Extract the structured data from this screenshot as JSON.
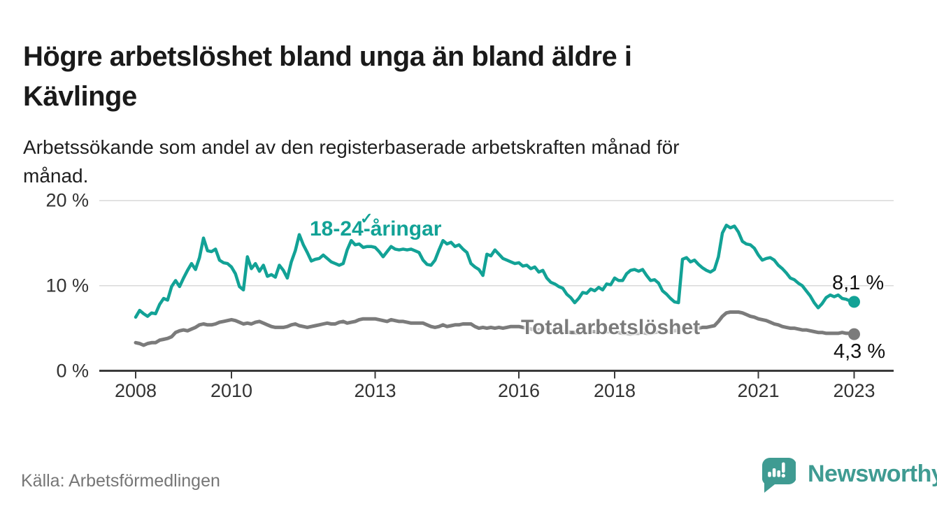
{
  "header": {
    "title": "Högre arbetslöshet bland unga än bland äldre i Kävlinge",
    "title_lines": [
      "Högre arbetslöshet bland unga än bland äldre i",
      "Kävlinge"
    ],
    "subtitle": "Arbetssökande som andel av den registerbaserade arbetskraften månad för månad.",
    "subtitle_lines": [
      "Arbetssökande som andel av den registerbaserade arbetskraften månad för",
      "månad."
    ]
  },
  "footer": {
    "source": "Källa: Arbetsförmedlingen",
    "logo_text": "Newsworthy",
    "logo_icon": "speech-bubble-bar-chart-icon"
  },
  "colors": {
    "young_line": "#12a296",
    "total_line": "#7b7b7b",
    "grid": "#d9d9d9",
    "axis": "#3a3a3a",
    "tick_text": "#333333",
    "logo_teal": "#3f9b92",
    "value_label_text": "#111111"
  },
  "chart_data": {
    "type": "line",
    "title": "Högre arbetslöshet bland unga än bland äldre i Kävlinge",
    "subtitle": "Arbetssökande som andel av den registerbaserade arbetskraften månad för månad.",
    "x_unit": "month",
    "x_start_year": 2008,
    "x_end": "2023-01",
    "xlim": [
      2008,
      2023.08
    ],
    "ylim": [
      0,
      21
    ],
    "grid": "horizontal",
    "legend": "inline-labels",
    "x_ticks": [
      {
        "year": 2008,
        "label": "2008"
      },
      {
        "year": 2010,
        "label": "2010"
      },
      {
        "year": 2013,
        "label": "2013"
      },
      {
        "year": 2016,
        "label": "2016"
      },
      {
        "year": 2018,
        "label": "2018"
      },
      {
        "year": 2021,
        "label": "2021"
      },
      {
        "year": 2023,
        "label": "2023"
      }
    ],
    "y_ticks": [
      {
        "value": 0,
        "label": "0 %"
      },
      {
        "value": 10,
        "label": "10 %"
      },
      {
        "value": 20,
        "label": "20 %"
      }
    ],
    "annotations": [
      {
        "id": "stray-check",
        "text": "✓"
      }
    ],
    "series": [
      {
        "name": "18-24-åringar",
        "color": "#12a296",
        "end_label": "8,1 %",
        "end_value": 8.1,
        "values": [
          6.3,
          7.1,
          6.7,
          6.4,
          6.8,
          6.7,
          7.8,
          8.5,
          8.3,
          9.9,
          10.6,
          9.9,
          10.9,
          11.8,
          12.6,
          11.9,
          13.3,
          15.6,
          14.1,
          14.0,
          14.3,
          13.0,
          12.7,
          12.6,
          12.2,
          11.4,
          9.9,
          9.5,
          13.4,
          12.0,
          12.6,
          11.7,
          12.4,
          11.1,
          11.3,
          11.0,
          12.4,
          11.8,
          10.9,
          12.8,
          14.1,
          16.0,
          14.8,
          13.9,
          12.9,
          13.1,
          13.2,
          13.6,
          13.2,
          12.8,
          12.6,
          12.4,
          12.6,
          14.2,
          15.3,
          14.8,
          14.9,
          14.5,
          14.6,
          14.6,
          14.5,
          14.0,
          13.4,
          14.0,
          14.6,
          14.3,
          14.2,
          14.3,
          14.2,
          14.3,
          14.1,
          13.9,
          13.0,
          12.5,
          12.4,
          13.0,
          14.2,
          15.3,
          14.9,
          15.1,
          14.6,
          14.8,
          14.3,
          13.9,
          12.6,
          12.2,
          11.9,
          11.2,
          13.7,
          13.5,
          14.2,
          13.7,
          13.2,
          13.0,
          12.8,
          12.6,
          12.7,
          12.3,
          12.4,
          12.0,
          12.2,
          11.6,
          11.8,
          10.9,
          10.4,
          10.2,
          9.9,
          9.7,
          9.0,
          8.6,
          8.0,
          8.5,
          9.2,
          9.1,
          9.6,
          9.4,
          9.8,
          9.5,
          10.2,
          10.1,
          10.9,
          10.6,
          10.6,
          11.4,
          11.8,
          11.9,
          11.7,
          11.9,
          11.2,
          10.6,
          10.7,
          10.3,
          9.4,
          9.0,
          8.5,
          8.1,
          8.0,
          13.1,
          13.3,
          12.8,
          13.0,
          12.5,
          12.1,
          11.8,
          11.6,
          11.9,
          13.4,
          16.2,
          17.1,
          16.8,
          17.0,
          16.3,
          15.2,
          14.9,
          14.8,
          14.4,
          13.6,
          13.0,
          13.2,
          13.3,
          13.0,
          12.4,
          12.0,
          11.5,
          10.9,
          10.7,
          10.3,
          10.0,
          9.4,
          8.8,
          8.0,
          7.4,
          7.9,
          8.6,
          8.9,
          8.7,
          8.9,
          8.5,
          8.4,
          8.2,
          8.1
        ]
      },
      {
        "name": "Total arbetslöshet",
        "color": "#7b7b7b",
        "end_label": "4,3 %",
        "end_value": 4.3,
        "values": [
          3.3,
          3.2,
          3.0,
          3.2,
          3.3,
          3.3,
          3.6,
          3.7,
          3.8,
          4.0,
          4.5,
          4.7,
          4.8,
          4.7,
          4.9,
          5.1,
          5.4,
          5.5,
          5.4,
          5.4,
          5.5,
          5.7,
          5.8,
          5.9,
          6.0,
          5.9,
          5.7,
          5.5,
          5.6,
          5.5,
          5.7,
          5.8,
          5.6,
          5.4,
          5.2,
          5.1,
          5.1,
          5.1,
          5.2,
          5.4,
          5.5,
          5.3,
          5.2,
          5.1,
          5.2,
          5.3,
          5.4,
          5.5,
          5.6,
          5.5,
          5.5,
          5.7,
          5.8,
          5.6,
          5.7,
          5.8,
          6.0,
          6.1,
          6.1,
          6.1,
          6.1,
          6.0,
          5.9,
          5.8,
          6.0,
          5.9,
          5.8,
          5.8,
          5.7,
          5.6,
          5.6,
          5.6,
          5.6,
          5.4,
          5.2,
          5.1,
          5.2,
          5.4,
          5.2,
          5.3,
          5.4,
          5.4,
          5.5,
          5.5,
          5.5,
          5.2,
          5.0,
          5.1,
          5.0,
          5.1,
          5.0,
          5.1,
          5.0,
          5.1,
          5.2,
          5.2,
          5.2,
          5.1,
          5.0,
          4.9,
          4.8,
          4.8,
          4.9,
          4.8,
          4.7,
          4.6,
          4.6,
          4.6,
          4.6,
          4.5,
          4.5,
          4.4,
          4.5,
          4.5,
          4.6,
          4.6,
          4.5,
          4.5,
          4.6,
          4.6,
          4.6,
          4.5,
          4.4,
          4.4,
          4.3,
          4.4,
          4.4,
          4.5,
          4.4,
          4.4,
          4.5,
          4.6,
          4.6,
          4.6,
          4.7,
          4.7,
          4.8,
          4.9,
          5.0,
          5.0,
          4.9,
          5.0,
          5.1,
          5.1,
          5.2,
          5.3,
          5.8,
          6.4,
          6.8,
          6.9,
          6.9,
          6.9,
          6.8,
          6.6,
          6.4,
          6.3,
          6.1,
          6.0,
          5.9,
          5.7,
          5.5,
          5.4,
          5.2,
          5.1,
          5.0,
          5.0,
          4.9,
          4.8,
          4.8,
          4.7,
          4.6,
          4.5,
          4.5,
          4.4,
          4.4,
          4.4,
          4.4,
          4.5,
          4.4,
          4.4,
          4.3
        ]
      }
    ]
  }
}
